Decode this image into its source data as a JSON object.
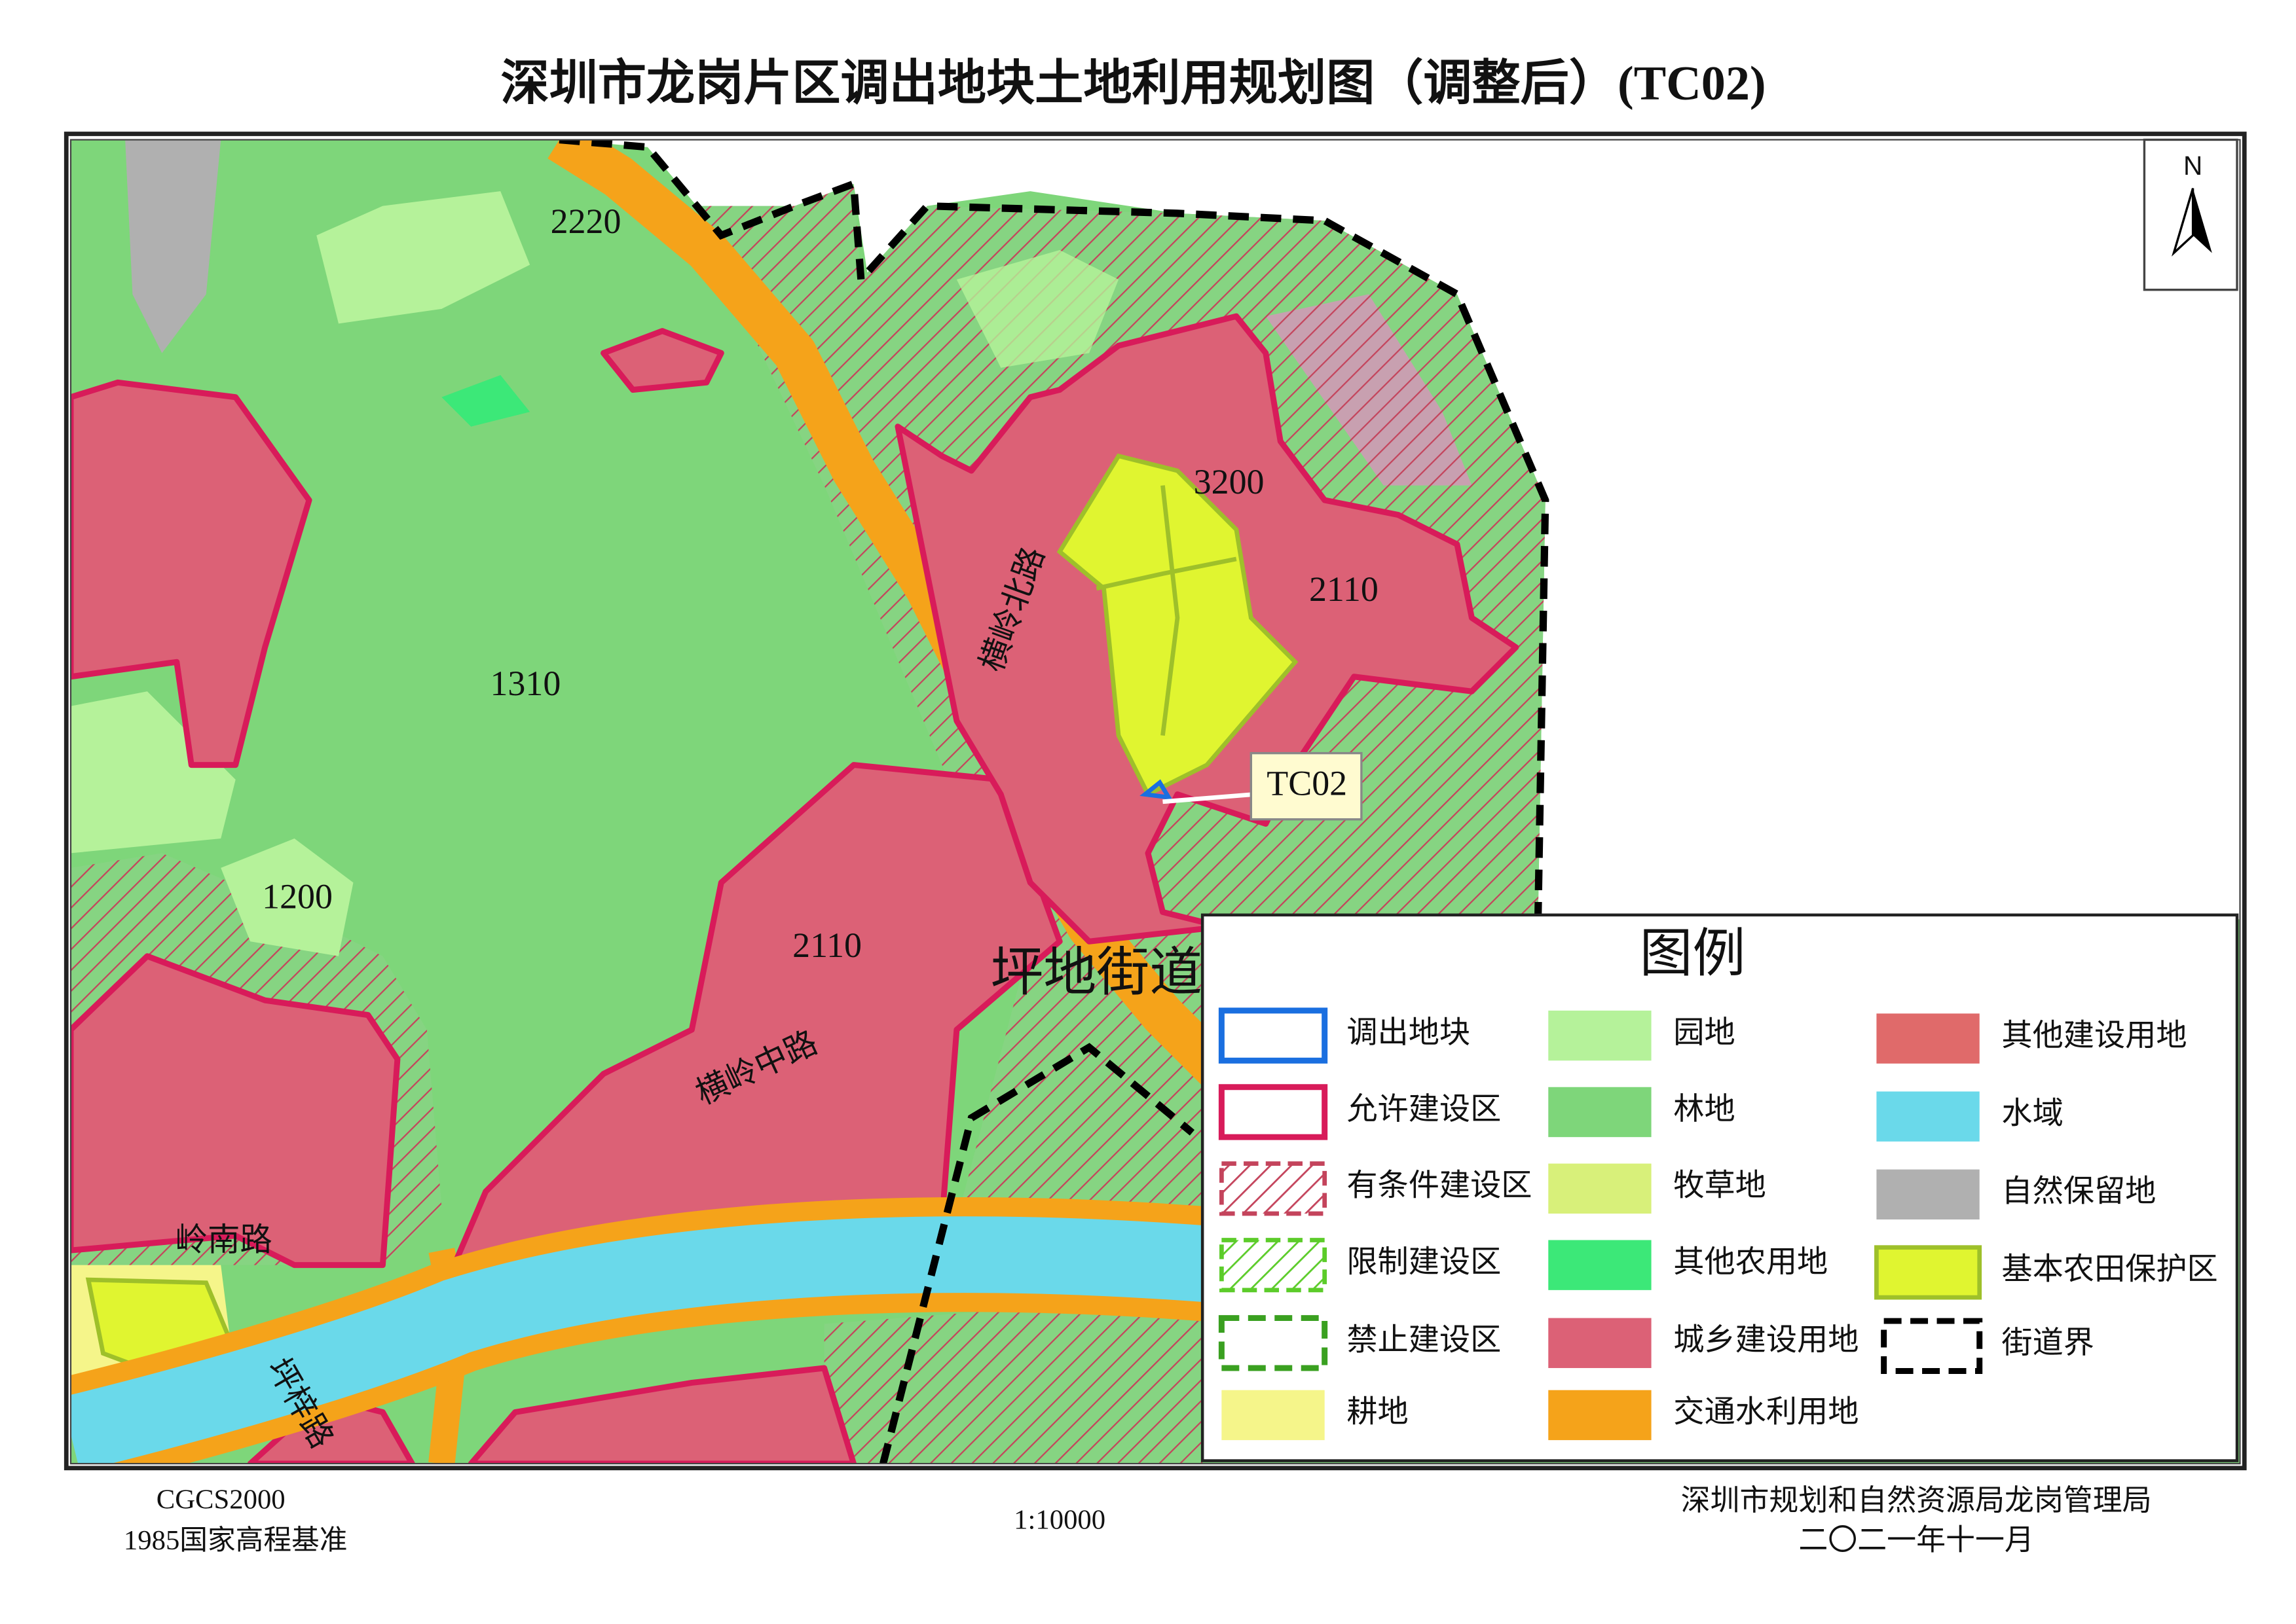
{
  "title": "深圳市龙岗片区调出地块土地利用规划图（调整后）(TC02)",
  "north": "N",
  "map_labels": {
    "zones": [
      "2220",
      "3200",
      "2110",
      "1310",
      "1200",
      "2110"
    ],
    "street": "坪地街道",
    "roads": [
      "横岭北路",
      "横岭中路",
      "岭南路",
      "坪梓路"
    ],
    "callout": "TC02"
  },
  "legend": {
    "title": "图例",
    "items": [
      "调出地块",
      "允许建设区",
      "有条件建设区",
      "限制建设区",
      "禁止建设区",
      "耕地",
      "园地",
      "林地",
      "牧草地",
      "其他农用地",
      "城乡建设用地",
      "交通水利用地",
      "其他建设用地",
      "水域",
      "自然保留地",
      "基本农田保护区",
      "街道界"
    ]
  },
  "footer": {
    "crs": "CGCS2000",
    "datum": "1985国家高程基准",
    "scale": "1:10000",
    "agency": "深圳市规划和自然资源局龙岗管理局",
    "date": "二〇二一年十一月"
  }
}
